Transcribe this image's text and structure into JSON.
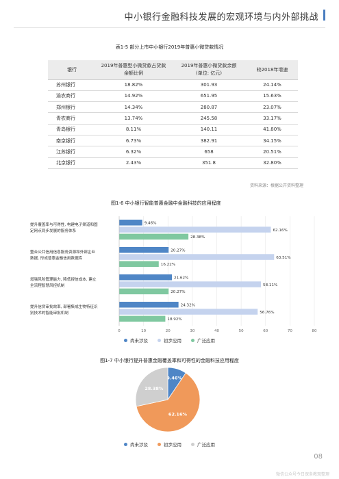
{
  "header": {
    "title": "中小银行金融科技发展的宏观环境与内外部挑战"
  },
  "table": {
    "caption": "表1-5  部分上市中小银行2019年普惠小微贷款情况",
    "headers": [
      "银行",
      "2019年普惠型小微贷款占贷款余额比例",
      "2019年普惠小微贷款余额(单位: 亿元)",
      "较2018年增速"
    ],
    "header_lines": [
      [
        "银行"
      ],
      [
        "2019年普惠型小微贷款占贷款",
        "余额比例"
      ],
      [
        "2019年普惠小微贷款余额",
        "(单位: 亿元)"
      ],
      [
        "较2018年增速"
      ]
    ],
    "rows": [
      [
        "苏州银行",
        "18.82%",
        "301.93",
        "24.14%"
      ],
      [
        "渝农商行",
        "14.92%",
        "651.95",
        "15.63%"
      ],
      [
        "郑州银行",
        "14.34%",
        "280.87",
        "23.07%"
      ],
      [
        "青农商行",
        "13.74%",
        "245.58",
        "33.17%"
      ],
      [
        "青岛银行",
        "8.11%",
        "140.11",
        "41.80%"
      ],
      [
        "南京银行",
        "6.73%",
        "382.91",
        "34.15%"
      ],
      [
        "江苏银行",
        "6.32%",
        "658",
        "20.51%"
      ],
      [
        "北京银行",
        "2.43%",
        "351.8",
        "32.80%"
      ]
    ],
    "source": "资料来源：根据公开资料整理"
  },
  "colors": {
    "not_involved": "#4f86c6",
    "initial": "#c5d3ee",
    "wide": "#7fc8a0",
    "pie_initial": "#f0995a",
    "pie_wide": "#cfcfcf",
    "pie_not": "#4f86c6"
  },
  "chart_data": [
    {
      "type": "bar",
      "orientation": "horizontal",
      "title": "图1-6  中小银行智能普惠金融中金融科技的应用程度",
      "categories": [
        [
          "提升覆盖率与可得性, 构建电子渠道和固",
          "定网点同步发展的服务体系"
        ],
        [
          "整合公共信用信息服务资源和外部企业",
          "数据, 形成普惠金融信用数据库"
        ],
        [
          "增强风险管理能力, 降低授信成本, 建立",
          "全流程智慧风控机制"
        ],
        [
          "提升信贷审批效率, 部署集成生物特征识",
          "别技术的智能审批机制"
        ]
      ],
      "series": [
        {
          "name": "尚未涉及",
          "values": [
            9.46,
            20.27,
            21.62,
            24.32
          ]
        },
        {
          "name": "初步应用",
          "values": [
            62.16,
            63.51,
            58.11,
            56.76
          ]
        },
        {
          "name": "广泛应用",
          "values": [
            28.38,
            16.22,
            20.27,
            18.92
          ]
        }
      ],
      "value_labels": [
        [
          "9.46%",
          "62.16%",
          "28.38%"
        ],
        [
          "20.27%",
          "63.51%",
          "16.22%"
        ],
        [
          "21.62%",
          "58.11%",
          "20.27%"
        ],
        [
          "24.32%",
          "56.76%",
          "18.92%"
        ]
      ],
      "xlim": [
        0,
        80
      ],
      "xticks": [
        "0",
        "10",
        "20",
        "30",
        "40",
        "50",
        "60",
        "70",
        "80"
      ],
      "legend": "bottom"
    },
    {
      "type": "pie",
      "title": "图1-7  中小银行提升普惠金融覆盖率和可得性的金融科技应用程度",
      "slices": [
        {
          "name": "尚未涉及",
          "value": 9.46,
          "label": "9.46%"
        },
        {
          "name": "初步应用",
          "value": 62.16,
          "label": "62.16%"
        },
        {
          "name": "广泛应用",
          "value": 28.38,
          "label": "28.38%"
        }
      ],
      "legend": "bottom"
    }
  ],
  "footer": {
    "page": "08",
    "watermark": "微信公众号今日保条教观整理"
  }
}
